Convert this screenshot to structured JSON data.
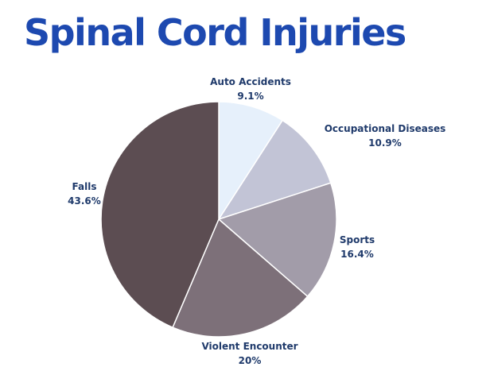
{
  "title": "Spinal Cord Injuries",
  "chart_data": {
    "type": "pie",
    "title": "Spinal Cord Injuries",
    "slices": [
      {
        "label": "Auto Accidents",
        "display": "9.1%",
        "value": 9.1,
        "color": "#e6f0fb"
      },
      {
        "label": "Occupational Diseases",
        "display": "10.9%",
        "value": 10.9,
        "color": "#c2c4d6"
      },
      {
        "label": "Sports",
        "display": "16.4%",
        "value": 16.4,
        "color": "#a29ca9"
      },
      {
        "label": "Violent Encounter",
        "display": "20%",
        "value": 20,
        "color": "#7d7079"
      },
      {
        "label": "Falls",
        "display": "43.6%",
        "value": 43.6,
        "color": "#5c4d52"
      }
    ],
    "start_angle": "12 o'clock",
    "direction": "clockwise"
  }
}
